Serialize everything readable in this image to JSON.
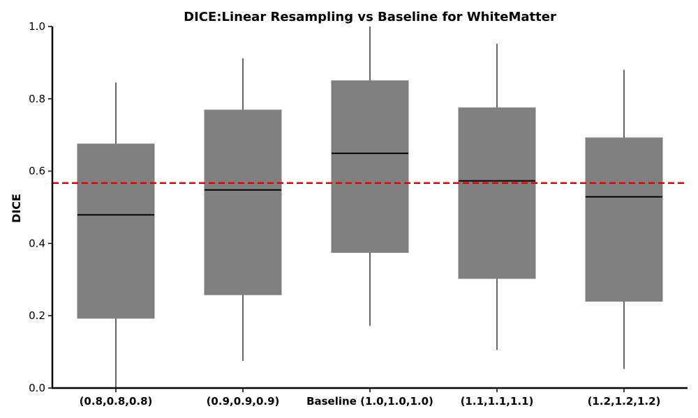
{
  "chart_data": {
    "type": "box",
    "title": "DICE:Linear Resampling vs Baseline for WhiteMatter",
    "xlabel": "",
    "ylabel": "DICE",
    "ylim": [
      0.0,
      1.0
    ],
    "yticks": [
      0.0,
      0.2,
      0.4,
      0.6,
      0.8,
      1.0
    ],
    "ytick_labels": [
      "0.0",
      "0.2",
      "0.4",
      "0.6",
      "0.8",
      "1.0"
    ],
    "grid": false,
    "box_color": "#808080",
    "median_color": "#000000",
    "whisker_color": "#000000",
    "reference_line": {
      "value": 0.567,
      "color": "#e60000",
      "style": "dashed"
    },
    "categories": [
      "(0.8,0.8,0.8)",
      "(0.9,0.9,0.9)",
      "Baseline (1.0,1.0,1.0)",
      "(1.1,1.1,1.1)",
      "(1.2,1.2,1.2)"
    ],
    "boxes": [
      {
        "whislo": 0.0,
        "q1": 0.193,
        "med": 0.479,
        "q3": 0.675,
        "whishi": 0.845
      },
      {
        "whislo": 0.075,
        "q1": 0.258,
        "med": 0.548,
        "q3": 0.769,
        "whishi": 0.912
      },
      {
        "whislo": 0.172,
        "q1": 0.375,
        "med": 0.649,
        "q3": 0.85,
        "whishi": 1.0
      },
      {
        "whislo": 0.105,
        "q1": 0.303,
        "med": 0.573,
        "q3": 0.775,
        "whishi": 0.952
      },
      {
        "whislo": 0.053,
        "q1": 0.24,
        "med": 0.529,
        "q3": 0.692,
        "whishi": 0.88
      }
    ]
  }
}
